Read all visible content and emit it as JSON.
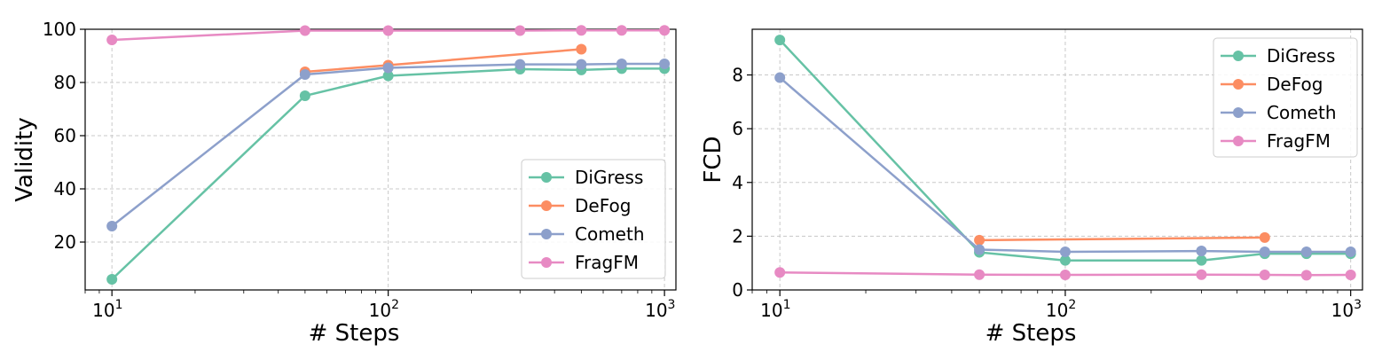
{
  "chart_data": [
    {
      "type": "line",
      "xlabel": "# Steps",
      "ylabel": "Validity",
      "xscale": "log",
      "xlim": [
        8,
        1100
      ],
      "ylim": [
        2,
        100
      ],
      "yticks": [
        20,
        40,
        60,
        80,
        100
      ],
      "xtick_labels": [
        {
          "value": 10,
          "base": "10",
          "exp": "1"
        },
        {
          "value": 100,
          "base": "10",
          "exp": "2"
        },
        {
          "value": 1000,
          "base": "10",
          "exp": "3"
        }
      ],
      "legend_position": "lower-right",
      "grid": true,
      "series": [
        {
          "name": "DiGress",
          "color": "#66c2a5",
          "x": [
            10,
            50,
            100,
            300,
            500,
            700,
            1000
          ],
          "y": [
            6,
            75,
            82.5,
            85,
            84.7,
            85.2,
            85.2
          ]
        },
        {
          "name": "DeFog",
          "color": "#fc8d62",
          "x": [
            50,
            100,
            500
          ],
          "y": [
            84,
            86.5,
            92.5
          ]
        },
        {
          "name": "Cometh",
          "color": "#8da0cb",
          "x": [
            10,
            50,
            100,
            300,
            500,
            700,
            1000
          ],
          "y": [
            26,
            83,
            85.5,
            86.8,
            86.8,
            87,
            87
          ]
        },
        {
          "name": "FragFM",
          "color": "#e78ac3",
          "x": [
            10,
            50,
            100,
            300,
            500,
            700,
            1000
          ],
          "y": [
            96,
            99.5,
            99.5,
            99.5,
            99.6,
            99.6,
            99.6
          ]
        }
      ]
    },
    {
      "type": "line",
      "xlabel": "# Steps",
      "ylabel": "FCD",
      "xscale": "log",
      "xlim": [
        8,
        1100
      ],
      "ylim": [
        0,
        9.7
      ],
      "yticks": [
        0,
        2,
        4,
        6,
        8
      ],
      "xtick_labels": [
        {
          "value": 10,
          "base": "10",
          "exp": "1"
        },
        {
          "value": 100,
          "base": "10",
          "exp": "2"
        },
        {
          "value": 1000,
          "base": "10",
          "exp": "3"
        }
      ],
      "legend_position": "upper-right",
      "grid": true,
      "series": [
        {
          "name": "DiGress",
          "color": "#66c2a5",
          "x": [
            10,
            50,
            100,
            300,
            500,
            700,
            1000
          ],
          "y": [
            9.3,
            1.4,
            1.1,
            1.1,
            1.35,
            1.35,
            1.35
          ]
        },
        {
          "name": "DeFog",
          "color": "#fc8d62",
          "x": [
            50,
            500
          ],
          "y": [
            1.85,
            1.95
          ]
        },
        {
          "name": "Cometh",
          "color": "#8da0cb",
          "x": [
            10,
            50,
            100,
            300,
            500,
            700,
            1000
          ],
          "y": [
            7.9,
            1.5,
            1.42,
            1.45,
            1.42,
            1.42,
            1.42
          ]
        },
        {
          "name": "FragFM",
          "color": "#e78ac3",
          "x": [
            10,
            50,
            100,
            300,
            500,
            700,
            1000
          ],
          "y": [
            0.65,
            0.57,
            0.56,
            0.57,
            0.56,
            0.55,
            0.56
          ]
        }
      ]
    }
  ]
}
